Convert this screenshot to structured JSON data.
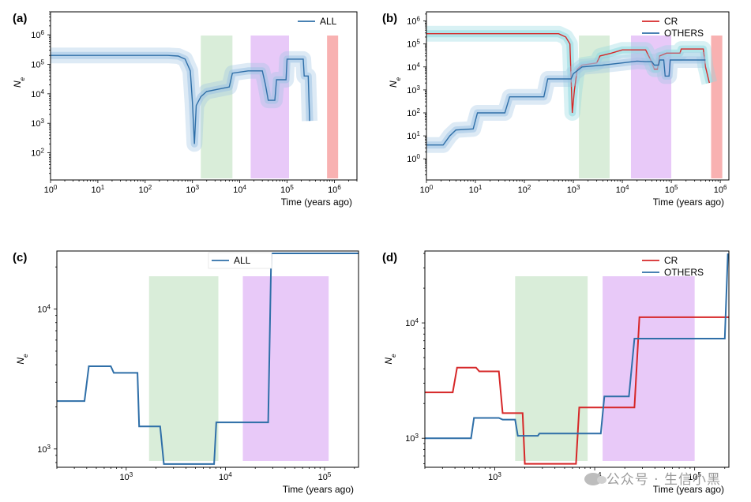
{
  "watermark": "公众号 · 生信小黑",
  "colors": {
    "all": "#2f6fa8",
    "cr": "#d62728",
    "others": "#2f6fa8",
    "green": "#cfe8cf",
    "purple": "#e6c3f7",
    "red": "#f7a8a8",
    "ci_blue": "#9ec3e3",
    "ci_cyan": "#8fd8e0"
  },
  "chart_data": [
    {
      "panel": "(a)",
      "type": "line",
      "xscale": "log",
      "yscale": "log",
      "xlim": [
        1,
        3000000
      ],
      "ylim": [
        12,
        6000000
      ],
      "xlabel": "Time (years ago)",
      "ylabel": "Ne",
      "xticks": [
        "10^0",
        "10^1",
        "10^2",
        "10^3",
        "10^4",
        "10^5",
        "10^6"
      ],
      "yticks": [
        "10^2",
        "10^3",
        "10^4",
        "10^5",
        "10^6"
      ],
      "legend": [
        "ALL"
      ],
      "legend_position": "top-right",
      "bands": [
        {
          "from": 1500,
          "to": 7000,
          "color": "green"
        },
        {
          "from": 17000,
          "to": 110000,
          "color": "purple"
        },
        {
          "from": 700000,
          "to": 1200000,
          "color": "red"
        }
      ],
      "series": [
        {
          "name": "ALL",
          "color": "all",
          "ci": true,
          "points": [
            [
              1,
              200000
            ],
            [
              300,
              200000
            ],
            [
              500,
              190000
            ],
            [
              700,
              150000
            ],
            [
              900,
              60000
            ],
            [
              1000,
              5000
            ],
            [
              1100,
              200
            ],
            [
              1200,
              4000
            ],
            [
              1500,
              8000
            ],
            [
              2000,
              12000
            ],
            [
              4000,
              15000
            ],
            [
              6000,
              17000
            ],
            [
              7000,
              50000
            ],
            [
              15000,
              60000
            ],
            [
              30000,
              60000
            ],
            [
              35000,
              20000
            ],
            [
              40000,
              6000
            ],
            [
              55000,
              6000
            ],
            [
              60000,
              30000
            ],
            [
              95000,
              30000
            ],
            [
              100000,
              150000
            ],
            [
              220000,
              150000
            ],
            [
              230000,
              40000
            ],
            [
              280000,
              40000
            ],
            [
              300000,
              1200
            ]
          ]
        }
      ]
    },
    {
      "panel": "(b)",
      "type": "line",
      "xscale": "log",
      "yscale": "log",
      "xlim": [
        1,
        1500000
      ],
      "ylim": [
        0.12,
        2500000
      ],
      "xlabel": "Time (years ago)",
      "ylabel": "Ne",
      "xticks": [
        "10^0",
        "10^1",
        "10^2",
        "10^3",
        "10^4",
        "10^5",
        "10^6"
      ],
      "yticks": [
        "10^0",
        "10^1",
        "10^2",
        "10^3",
        "10^4",
        "10^5",
        "10^6"
      ],
      "legend": [
        "CR",
        "OTHERS"
      ],
      "legend_position": "top-right",
      "bands": [
        {
          "from": 1300,
          "to": 5500,
          "color": "green"
        },
        {
          "from": 15000,
          "to": 100000,
          "color": "purple"
        },
        {
          "from": 650000,
          "to": 1100000,
          "color": "red"
        }
      ],
      "series": [
        {
          "name": "CR",
          "color": "cr",
          "ci": true,
          "points": [
            [
              1,
              280000
            ],
            [
              500,
              280000
            ],
            [
              700,
              200000
            ],
            [
              850,
              100000
            ],
            [
              950,
              100
            ],
            [
              1050,
              1000
            ],
            [
              1200,
              8000
            ],
            [
              1500,
              12000
            ],
            [
              3000,
              15000
            ],
            [
              3500,
              30000
            ],
            [
              6000,
              40000
            ],
            [
              10000,
              55000
            ],
            [
              30000,
              55000
            ],
            [
              38000,
              20000
            ],
            [
              45000,
              8000
            ],
            [
              52000,
              8000
            ],
            [
              58000,
              30000
            ],
            [
              80000,
              40000
            ],
            [
              150000,
              40000
            ],
            [
              160000,
              60000
            ],
            [
              450000,
              60000
            ],
            [
              500000,
              10000
            ],
            [
              600000,
              2000
            ]
          ]
        },
        {
          "name": "OTHERS",
          "color": "others",
          "ci": true,
          "points": [
            [
              1,
              4
            ],
            [
              2.2,
              4
            ],
            [
              3,
              10
            ],
            [
              4,
              18
            ],
            [
              9,
              20
            ],
            [
              11,
              100
            ],
            [
              40,
              100
            ],
            [
              50,
              500
            ],
            [
              250,
              500
            ],
            [
              300,
              3000
            ],
            [
              900,
              3000
            ],
            [
              1000,
              5000
            ],
            [
              1500,
              10000
            ],
            [
              4000,
              12000
            ],
            [
              10000,
              15000
            ],
            [
              20000,
              18000
            ],
            [
              30000,
              17000
            ],
            [
              40000,
              17000
            ],
            [
              45000,
              12000
            ],
            [
              55000,
              12000
            ],
            [
              58000,
              20000
            ],
            [
              70000,
              20000
            ],
            [
              75000,
              4000
            ],
            [
              90000,
              4000
            ],
            [
              95000,
              20000
            ],
            [
              500000,
              20000
            ]
          ]
        }
      ]
    },
    {
      "panel": "(c)",
      "type": "line",
      "xscale": "log",
      "yscale": "log",
      "xlim": [
        200,
        220000
      ],
      "ylim": [
        740,
        26000
      ],
      "xlabel": "Time (years ago)",
      "ylabel": "Ne",
      "xticks": [
        "10^3",
        "10^4",
        "10^5"
      ],
      "yticks": [
        "10^3",
        "10^4"
      ],
      "legend": [
        "ALL"
      ],
      "legend_position": "top-center",
      "bands": [
        {
          "from": 1700,
          "to": 8500,
          "color": "green"
        },
        {
          "from": 15000,
          "to": 110000,
          "color": "purple"
        }
      ],
      "series": [
        {
          "name": "ALL",
          "color": "all",
          "ci": false,
          "points": [
            [
              200,
              2200
            ],
            [
              380,
              2200
            ],
            [
              420,
              3900
            ],
            [
              700,
              3900
            ],
            [
              750,
              3500
            ],
            [
              1300,
              3500
            ],
            [
              1350,
              1450
            ],
            [
              2200,
              1450
            ],
            [
              2400,
              780
            ],
            [
              7700,
              780
            ],
            [
              8100,
              1550
            ],
            [
              27000,
              1550
            ],
            [
              29000,
              25000
            ],
            [
              220000,
              25000
            ]
          ]
        }
      ]
    },
    {
      "panel": "(d)",
      "type": "line",
      "xscale": "log",
      "yscale": "log",
      "xlim": [
        200,
        220000
      ],
      "ylim": [
        560,
        42000
      ],
      "xlabel": "Time (years ago)",
      "ylabel": "Ne",
      "xticks": [
        "10^3",
        "10^4",
        "10^5"
      ],
      "yticks": [
        "10^3",
        "10^4"
      ],
      "legend": [
        "CR",
        "OTHERS"
      ],
      "legend_position": "top-right",
      "bands": [
        {
          "from": 1600,
          "to": 8500,
          "color": "green"
        },
        {
          "from": 12000,
          "to": 100000,
          "color": "purple"
        }
      ],
      "series": [
        {
          "name": "CR",
          "color": "cr",
          "ci": false,
          "points": [
            [
              200,
              2500
            ],
            [
              380,
              2500
            ],
            [
              420,
              4100
            ],
            [
              650,
              4100
            ],
            [
              700,
              3800
            ],
            [
              1100,
              3800
            ],
            [
              1200,
              1650
            ],
            [
              1900,
              1650
            ],
            [
              2000,
              600
            ],
            [
              6500,
              600
            ],
            [
              7000,
              1850
            ],
            [
              25000,
              1850
            ],
            [
              28000,
              11200
            ],
            [
              220000,
              11200
            ]
          ]
        },
        {
          "name": "OTHERS",
          "color": "others",
          "ci": false,
          "points": [
            [
              200,
              1000
            ],
            [
              580,
              1000
            ],
            [
              620,
              1500
            ],
            [
              1100,
              1500
            ],
            [
              1200,
              1450
            ],
            [
              1600,
              1450
            ],
            [
              1700,
              1050
            ],
            [
              2700,
              1050
            ],
            [
              2800,
              1100
            ],
            [
              11500,
              1100
            ],
            [
              12500,
              2300
            ],
            [
              22000,
              2300
            ],
            [
              25000,
              7300
            ],
            [
              200000,
              7300
            ],
            [
              215000,
              40000
            ]
          ]
        }
      ]
    }
  ]
}
